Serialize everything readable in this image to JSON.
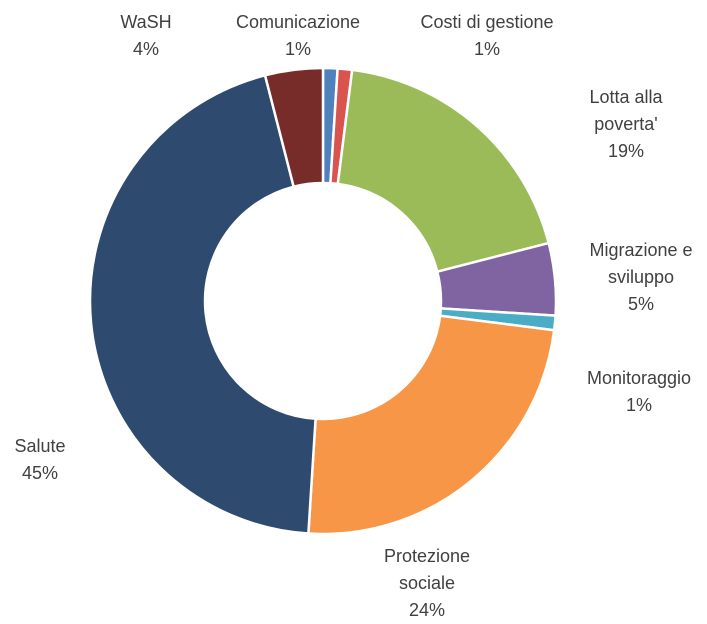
{
  "chart_data": {
    "type": "donut",
    "categories": [
      "Comunicazione",
      "Costi di gestione",
      "Lotta alla poverta'",
      "Migrazione e sviluppo",
      "Monitoraggio",
      "Protezione sociale",
      "Salute",
      "WaSH"
    ],
    "values": [
      1,
      1,
      19,
      5,
      1,
      24,
      45,
      4
    ],
    "value_labels": [
      "1%",
      "1%",
      "19%",
      "5%",
      "1%",
      "24%",
      "45%",
      "4%"
    ],
    "colors": [
      "#4f81bd",
      "#d9534f",
      "#9bbb59",
      "#8064a2",
      "#4bacc6",
      "#f79646",
      "#2e4a6f",
      "#772c2a"
    ]
  }
}
